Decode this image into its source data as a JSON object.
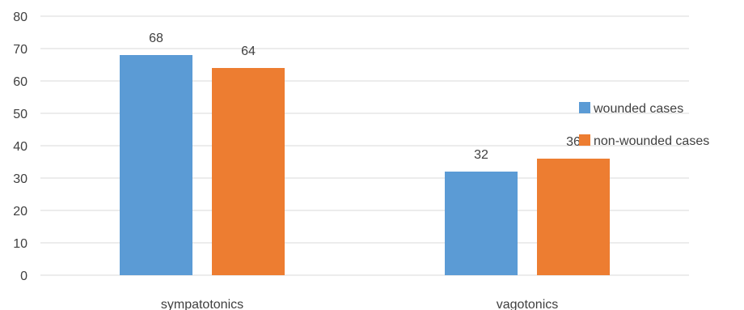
{
  "chart_data": {
    "type": "bar",
    "categories": [
      "sympatotonics",
      "vagotonics"
    ],
    "series": [
      {
        "name": "wounded cases",
        "values": [
          68,
          32
        ],
        "color": "#5B9BD5"
      },
      {
        "name": "non-wounded cases",
        "values": [
          64,
          36
        ],
        "color": "#ED7D31"
      }
    ],
    "ylim": [
      0,
      80
    ],
    "yticks": [
      0,
      10,
      20,
      30,
      40,
      50,
      60,
      70,
      80
    ],
    "grid": true,
    "legend_position": "right",
    "data_labels": true,
    "title": "",
    "xlabel": "",
    "ylabel": ""
  }
}
